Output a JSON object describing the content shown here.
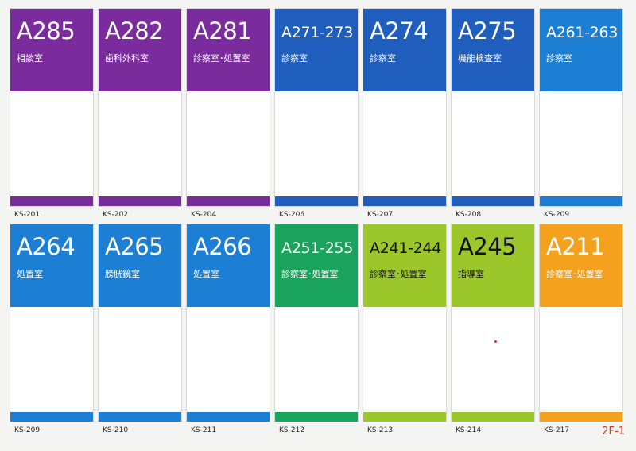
{
  "signs": [
    {
      "room": "A285",
      "name": "相談室",
      "code": "KS-201",
      "color": "#7a2c9c",
      "text": "#ffffff"
    },
    {
      "room": "A282",
      "name": "歯科外科室",
      "code": "KS-202",
      "color": "#7a2c9c",
      "text": "#ffffff"
    },
    {
      "room": "A281",
      "name": "診察室･処置室",
      "code": "KS-204",
      "color": "#7a2c9c",
      "text": "#ffffff"
    },
    {
      "room": "A271-273",
      "name": "診察室",
      "code": "KS-206",
      "color": "#1f5ebd",
      "text": "#ffffff"
    },
    {
      "room": "A274",
      "name": "診察室",
      "code": "KS-207",
      "color": "#1f5ebd",
      "text": "#ffffff"
    },
    {
      "room": "A275",
      "name": "機能検査室",
      "code": "KS-208",
      "color": "#1f5ebd",
      "text": "#ffffff"
    },
    {
      "room": "A261-263",
      "name": "診察室",
      "code": "KS-209",
      "color": "#1c7fd4",
      "text": "#ffffff"
    },
    {
      "room": "A264",
      "name": "処置室",
      "code": "KS-209",
      "color": "#1c7fd4",
      "text": "#ffffff"
    },
    {
      "room": "A265",
      "name": "膀胱鏡室",
      "code": "KS-210",
      "color": "#1c7fd4",
      "text": "#ffffff"
    },
    {
      "room": "A266",
      "name": "処置室",
      "code": "KS-211",
      "color": "#1c7fd4",
      "text": "#ffffff"
    },
    {
      "room": "A251-255",
      "name": "診察室･処置室",
      "code": "KS-212",
      "color": "#1aa35c",
      "text": "#ffffff"
    },
    {
      "room": "A241-244",
      "name": "診察室･処置室",
      "code": "KS-213",
      "color": "#9cc72a",
      "text": "#111111"
    },
    {
      "room": "A245",
      "name": "指導室",
      "code": "KS-214",
      "color": "#9cc72a",
      "text": "#111111"
    },
    {
      "room": "A211",
      "name": "診察室･処置室",
      "code": "KS-217",
      "color": "#f4a11e",
      "text": "#ffffff"
    }
  ],
  "page_label": "2F-1"
}
